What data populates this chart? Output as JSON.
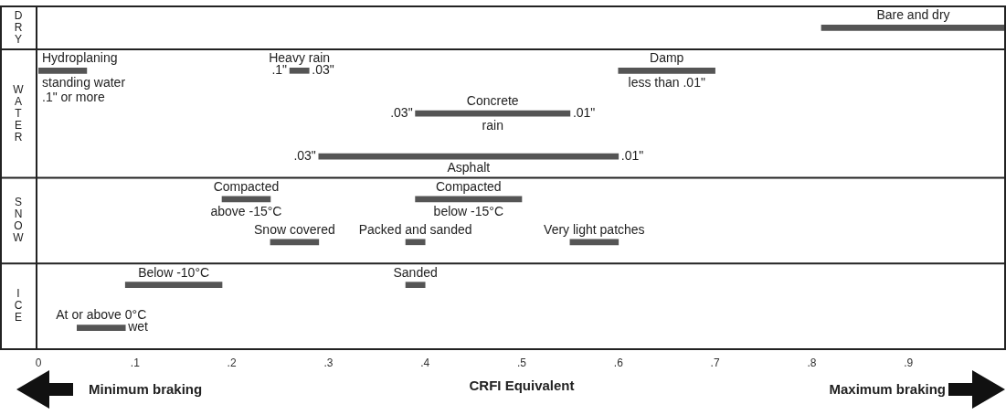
{
  "chart_data": {
    "type": "bar",
    "orientation": "horizontal",
    "categories": [
      null,
      null,
      null,
      null,
      null,
      null,
      null,
      null
    ],
    "xlim": [
      0,
      1
    ],
    "xticks": [
      0,
      {
        "value": 0.1,
        "label": ".1"
      },
      {
        "value": 0.2,
        "label": ".2"
      },
      {
        "value": 0.3,
        "label": ".3"
      },
      {
        "value": 0.4,
        "label": ".4"
      },
      {
        "value": 0.5,
        "label": ".5"
      },
      {
        "value": 0.6,
        "label": ".6"
      },
      {
        "value": 0.7,
        "label": ".7"
      },
      {
        "value": 0.8,
        "label": ".8"
      },
      {
        "value": 0.9,
        "label": ".9"
      }
    ],
    "xlabel": "CRFI Equivalent",
    "tick_labels": "x",
    "series": [
      {
        "name": "Bare and dry",
        "color": "#555555",
        "base": [
          0.81,
          null,
          null,
          null,
          null,
          null,
          null,
          null
        ],
        "values": [
          0.19,
          null,
          null,
          null,
          null,
          null,
          null,
          null
        ]
      },
      {
        "name": "Hydroplaning",
        "color": "#555555",
        "base": [
          null,
          0,
          null,
          null,
          null,
          null,
          null,
          null
        ],
        "values": [
          null,
          0.05,
          null,
          null,
          null,
          null,
          null,
          null
        ]
      },
      {
        "name": "Heavy rain",
        "color": "#555555",
        "base": [
          null,
          0.26,
          null,
          null,
          null,
          null,
          null,
          null
        ],
        "values": [
          null,
          0.02,
          null,
          null,
          null,
          null,
          null,
          null
        ]
      },
      {
        "name": "Damp",
        "color": "#555555",
        "base": [
          null,
          0.6,
          null,
          null,
          null,
          null,
          null,
          null
        ],
        "values": [
          null,
          0.1,
          null,
          null,
          null,
          null,
          null,
          null
        ]
      },
      {
        "name": "Concrete",
        "color": "#555555",
        "base": [
          null,
          null,
          0.39,
          null,
          null,
          null,
          null,
          null
        ],
        "values": [
          null,
          null,
          0.16,
          null,
          null,
          null,
          null,
          null
        ]
      },
      {
        "name": "Asphalt",
        "color": "#555555",
        "base": [
          null,
          null,
          null,
          0.29,
          null,
          null,
          null,
          null
        ],
        "values": [
          null,
          null,
          null,
          0.31,
          null,
          null,
          null,
          null
        ]
      },
      {
        "name": "Compacted",
        "color": "#555555",
        "base": [
          null,
          null,
          null,
          null,
          0.19,
          null,
          null,
          null
        ],
        "values": [
          null,
          null,
          null,
          null,
          0.05,
          null,
          null,
          null
        ]
      },
      {
        "name": "Compacted",
        "color": "#555555",
        "base": [
          null,
          null,
          null,
          null,
          0.39,
          null,
          null,
          null
        ],
        "values": [
          null,
          null,
          null,
          null,
          0.11,
          null,
          null,
          null
        ]
      },
      {
        "name": "Snow covered",
        "color": "#555555",
        "base": [
          null,
          null,
          null,
          null,
          null,
          0.24,
          null,
          null
        ],
        "values": [
          null,
          null,
          null,
          null,
          null,
          0.05,
          null,
          null
        ]
      },
      {
        "name": "Packed and sanded",
        "color": "#555555",
        "base": [
          null,
          null,
          null,
          null,
          null,
          0.38,
          null,
          null
        ],
        "values": [
          null,
          null,
          null,
          null,
          null,
          0.02,
          null,
          null
        ]
      },
      {
        "name": "Very light patches",
        "color": "#555555",
        "base": [
          null,
          null,
          null,
          null,
          null,
          0.55,
          null,
          null
        ],
        "values": [
          null,
          null,
          null,
          null,
          null,
          0.05,
          null,
          null
        ]
      },
      {
        "name": "Below -10°C",
        "color": "#555555",
        "base": [
          null,
          null,
          null,
          null,
          null,
          null,
          0.09,
          null
        ],
        "values": [
          null,
          null,
          null,
          null,
          null,
          null,
          0.1,
          null
        ]
      },
      {
        "name": "Sanded",
        "color": "#555555",
        "base": [
          null,
          null,
          null,
          null,
          null,
          null,
          0.38,
          null
        ],
        "values": [
          null,
          null,
          null,
          null,
          null,
          null,
          0.02,
          null
        ]
      },
      {
        "name": "At or above 0°C",
        "color": "#555555",
        "base": [
          null,
          null,
          null,
          null,
          null,
          null,
          null,
          0.04
        ],
        "values": [
          null,
          null,
          null,
          null,
          null,
          null,
          null,
          0.05
        ]
      }
    ],
    "annotations": [
      "DRY",
      "WATER",
      "SNOW",
      "ICE",
      "standing water",
      ".1\" or more",
      {
        "text": ".1\"",
        "x": 0.26
      },
      {
        "text": ".03\"",
        "x": 0.28
      },
      "less than .01\"",
      {
        "text": ".03\"",
        "x": 0.39
      },
      {
        "text": ".01\"",
        "x": 0.55
      },
      "rain",
      {
        "text": ".03\"",
        "x": 0.29
      },
      {
        "text": ".01\"",
        "x": 0.6
      },
      "above -15°C",
      "below -15°C",
      {
        "text": "wet",
        "x": 0.09
      },
      "Minimum braking",
      "Maximum braking"
    ]
  }
}
